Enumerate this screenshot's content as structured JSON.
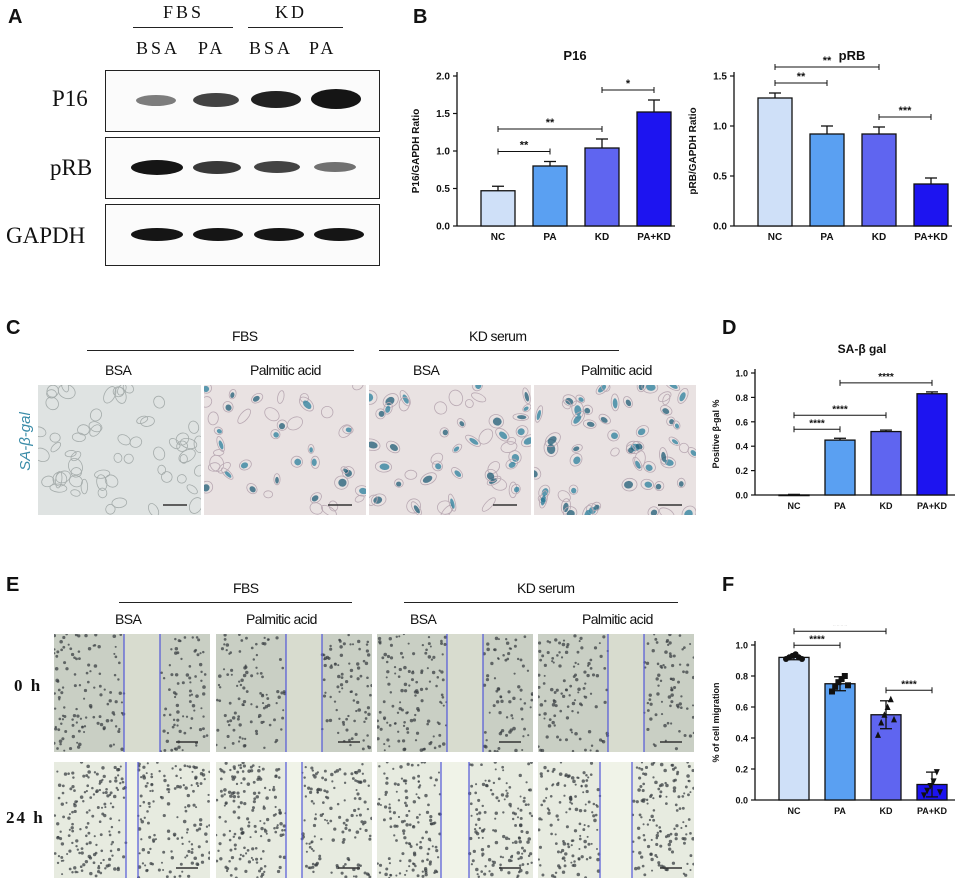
{
  "panel_labels": {
    "A": "A",
    "B": "B",
    "C": "C",
    "D": "D",
    "E": "E",
    "F": "F"
  },
  "panel_a": {
    "group_headers": [
      "FBS",
      "KD"
    ],
    "lane_labels": [
      "BSA",
      "PA",
      "BSA",
      "PA"
    ],
    "rows": [
      {
        "label": "P16",
        "band_intensity": [
          0.55,
          0.8,
          0.95,
          1.0
        ]
      },
      {
        "label": "pRB",
        "band_intensity": [
          1.0,
          0.85,
          0.8,
          0.6
        ]
      },
      {
        "label": "GAPDH",
        "band_intensity": [
          1.0,
          1.0,
          1.0,
          1.0
        ]
      }
    ]
  },
  "panel_c": {
    "group_headers": [
      "FBS",
      "KD serum"
    ],
    "condition_labels": [
      "BSA",
      "Palmitic acid",
      "BSA",
      "Palmitic acid"
    ],
    "row_label": "SA-β-gal"
  },
  "panel_e": {
    "group_headers": [
      "FBS",
      "KD serum"
    ],
    "condition_labels": [
      "BSA",
      "Palmitic acid",
      "BSA",
      "Palmitic acid"
    ],
    "row_labels": [
      "0 h",
      "24 h"
    ]
  },
  "chart_data": [
    {
      "id": "p16",
      "type": "bar",
      "title": "P16",
      "ylabel": "P16/GAPDH Ratio",
      "categories": [
        "NC",
        "PA",
        "KD",
        "PA+KD"
      ],
      "values": [
        0.47,
        0.8,
        1.04,
        1.52
      ],
      "errors": [
        0.06,
        0.06,
        0.12,
        0.16
      ],
      "ylim": [
        0,
        2.0
      ],
      "yticks": [
        "0.0",
        "0.5",
        "1.0",
        "1.5",
        "2.0"
      ],
      "colors": [
        "#cfe0f8",
        "#5aa0f2",
        "#5f65f0",
        "#1d14f0"
      ],
      "significance": [
        {
          "from": 0,
          "to": 1,
          "label": "**"
        },
        {
          "from": 0,
          "to": 2,
          "label": "**"
        },
        {
          "from": 2,
          "to": 3,
          "label": "*"
        }
      ]
    },
    {
      "id": "prb",
      "type": "bar",
      "title": "pRB",
      "ylabel": "pRB/GAPDH Ratio",
      "categories": [
        "NC",
        "PA",
        "KD",
        "PA+KD"
      ],
      "values": [
        1.28,
        0.92,
        0.92,
        0.42
      ],
      "errors": [
        0.05,
        0.08,
        0.07,
        0.06
      ],
      "ylim": [
        0,
        1.5
      ],
      "yticks": [
        "0.0",
        "0.5",
        "1.0",
        "1.5"
      ],
      "colors": [
        "#cfe0f8",
        "#5aa0f2",
        "#5f65f0",
        "#1d14f0"
      ],
      "significance": [
        {
          "from": 0,
          "to": 1,
          "label": "**"
        },
        {
          "from": 0,
          "to": 2,
          "label": "**"
        },
        {
          "from": 2,
          "to": 3,
          "label": "***"
        }
      ]
    },
    {
      "id": "sagal",
      "type": "bar",
      "title": "SA-β gal",
      "ylabel": "Positive β-gal %",
      "categories": [
        "NC",
        "PA",
        "KD",
        "PA+KD"
      ],
      "values": [
        0.0,
        0.45,
        0.52,
        0.83
      ],
      "errors": [
        0.005,
        0.015,
        0.012,
        0.015
      ],
      "ylim": [
        0,
        1.0
      ],
      "yticks": [
        "0.0",
        "0.2",
        "0.4",
        "0.6",
        "0.8",
        "1.0"
      ],
      "colors": [
        "#cfe0f8",
        "#5aa0f2",
        "#5f65f0",
        "#1d14f0"
      ],
      "significance": [
        {
          "from": 0,
          "to": 1,
          "label": "****"
        },
        {
          "from": 0,
          "to": 2,
          "label": "****"
        },
        {
          "from": 1,
          "to": 3,
          "label": "****"
        }
      ]
    },
    {
      "id": "migration",
      "type": "bar",
      "title": "",
      "ylabel": "% of cell migration",
      "categories": [
        "NC",
        "PA",
        "KD",
        "PA+KD"
      ],
      "values": [
        0.92,
        0.75,
        0.55,
        0.1
      ],
      "errors": [
        0.015,
        0.045,
        0.09,
        0.08
      ],
      "ylim": [
        0,
        1.0
      ],
      "yticks": [
        "0.0",
        "0.2",
        "0.4",
        "0.6",
        "0.8",
        "1.0"
      ],
      "colors": [
        "#cfe0f8",
        "#5aa0f2",
        "#5f65f0",
        "#1d14f0"
      ],
      "points": [
        [
          0.91,
          0.92,
          0.93,
          0.94,
          0.92,
          0.91
        ],
        [
          0.7,
          0.73,
          0.76,
          0.78,
          0.8,
          0.74
        ],
        [
          0.42,
          0.5,
          0.55,
          0.6,
          0.65,
          0.52
        ],
        [
          0.03,
          0.06,
          0.09,
          0.12,
          0.18,
          0.05
        ]
      ],
      "markers": [
        "circle",
        "square",
        "triangle",
        "triangle-down"
      ],
      "significance": [
        {
          "from": 0,
          "to": 1,
          "label": "****"
        },
        {
          "from": 0,
          "to": 2,
          "label": "****"
        },
        {
          "from": 2,
          "to": 3,
          "label": "****"
        }
      ]
    }
  ]
}
